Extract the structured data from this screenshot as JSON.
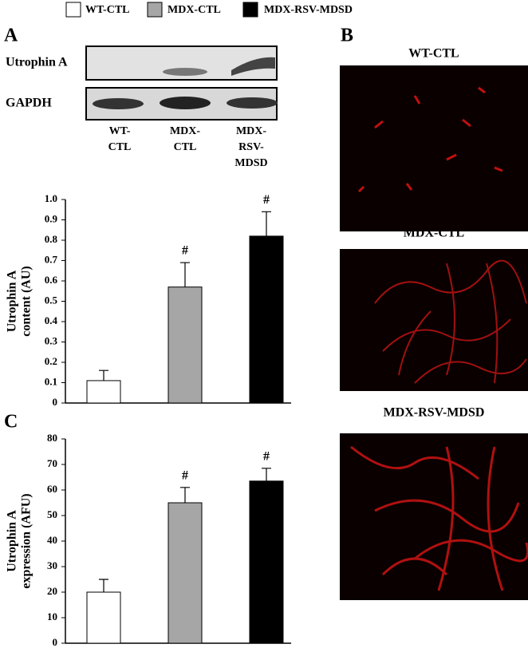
{
  "legend": {
    "items": [
      {
        "name": "WT-CTL",
        "color": "#ffffff"
      },
      {
        "name": "MDX-CTL",
        "color": "#a6a6a6"
      },
      {
        "name": "MDX-RSV-MDSD",
        "color": "#000000"
      }
    ]
  },
  "panels": {
    "a": "A",
    "b": "B",
    "c": "C"
  },
  "blot": {
    "rows": [
      "Utrophin A",
      "GAPDH"
    ],
    "lanes": [
      [
        "WT-",
        "CTL"
      ],
      [
        "MDX-",
        "CTL"
      ],
      [
        "MDX-",
        "RSV-",
        "MDSD"
      ]
    ]
  },
  "images": {
    "titles": [
      "WT-CTL",
      "MDX-CTL",
      "MDX-RSV-MDSD"
    ]
  },
  "chart_data": [
    {
      "type": "bar",
      "ylabel": [
        "Utrophin A",
        "content (AU)"
      ],
      "categories": [
        null,
        null,
        null
      ],
      "values": [
        0.11,
        0.57,
        0.82
      ],
      "errors": [
        0.05,
        0.12,
        0.12
      ],
      "annotations": [
        null,
        "#",
        "#"
      ],
      "ylim": [
        0,
        1
      ],
      "yticks": [
        0,
        0.1,
        0.2,
        0.3,
        0.4,
        0.5,
        0.6,
        0.7,
        0.8,
        0.9,
        {
          "value": 1,
          "label": "1.0"
        }
      ]
    },
    {
      "type": "bar",
      "ylabel": [
        "Utrophin A",
        "expression (AFU)"
      ],
      "categories": [
        null,
        null,
        null
      ],
      "values": [
        20,
        55,
        63.5
      ],
      "errors": [
        5,
        6,
        5
      ],
      "annotations": [
        null,
        "#",
        "#"
      ],
      "ylim": [
        0,
        80
      ],
      "yticks": [
        0,
        10,
        20,
        30,
        40,
        50,
        60,
        70,
        80
      ]
    }
  ]
}
